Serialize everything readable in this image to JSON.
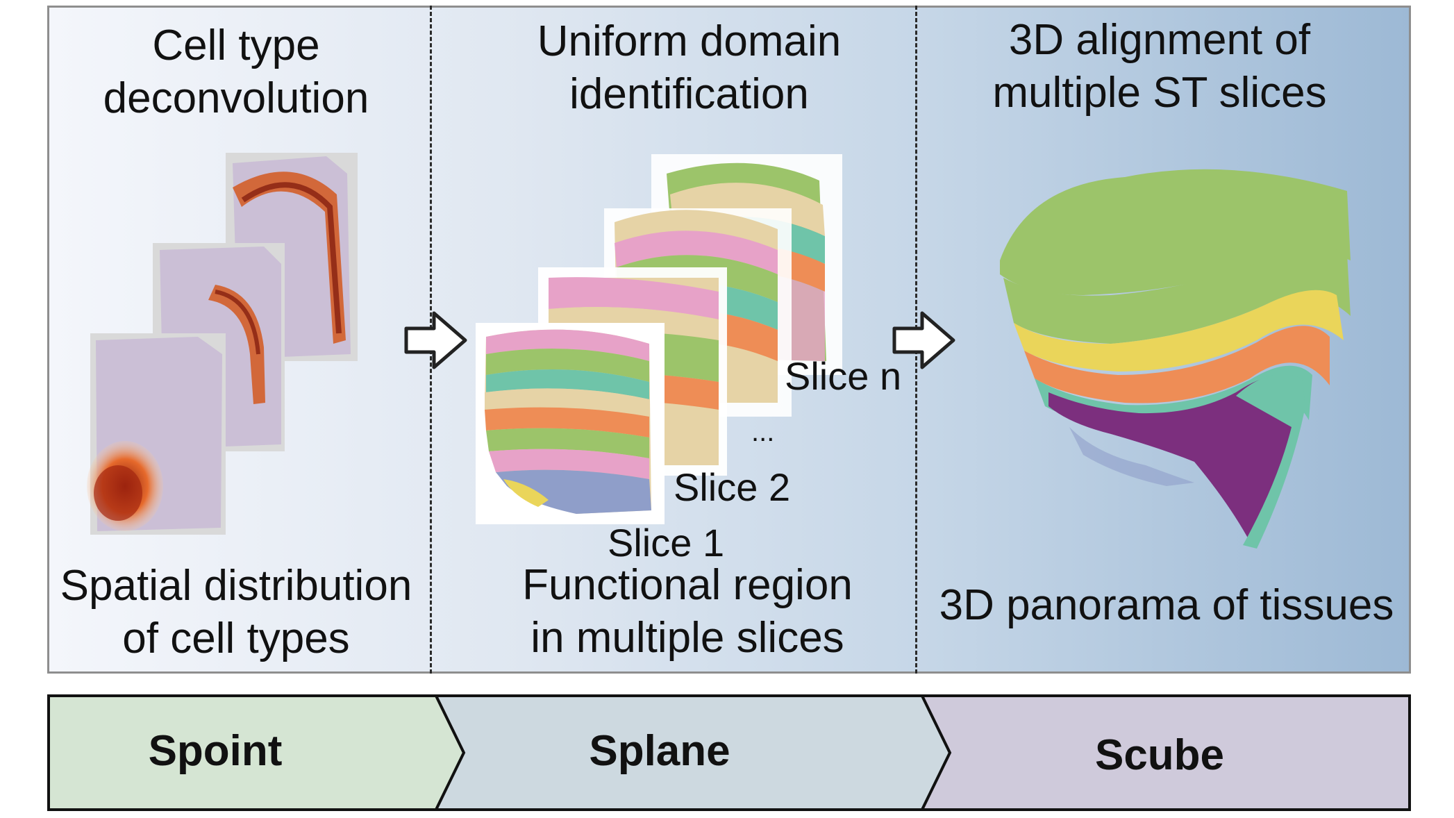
{
  "sections": {
    "point": {
      "title_line1": "Cell type",
      "title_line2": "deconvolution",
      "caption_line1": "Spatial distribution",
      "caption_line2": "of cell types"
    },
    "plane": {
      "title_line1": "Uniform domain",
      "title_line2": "identification",
      "caption_line1": "Functional region",
      "caption_line2": "in multiple slices",
      "slice_labels": [
        "Slice n",
        "...",
        "Slice 2",
        "Slice 1"
      ]
    },
    "cube": {
      "title_line1": "3D alignment of",
      "title_line2": "multiple ST slices",
      "caption": "3D panorama of tissues"
    }
  },
  "stages": [
    {
      "label": "Spoint",
      "color": "#d5e5d3"
    },
    {
      "label": "Splane",
      "color": "#cdd9e0"
    },
    {
      "label": "Scube",
      "color": "#cfcadb"
    }
  ],
  "domain_colors": {
    "pink": "#e7a2c8",
    "green": "#9cc46a",
    "cream": "#e6d3a6",
    "orange": "#ee8d56",
    "teal": "#6fc4a9",
    "blue": "#8f9ec9",
    "yellow": "#ead55a",
    "purple": "#7c2f7e",
    "heat_dark": "#8a1c0c",
    "heat_orange": "#f08a3c",
    "tissue": "#cbbfd6"
  }
}
